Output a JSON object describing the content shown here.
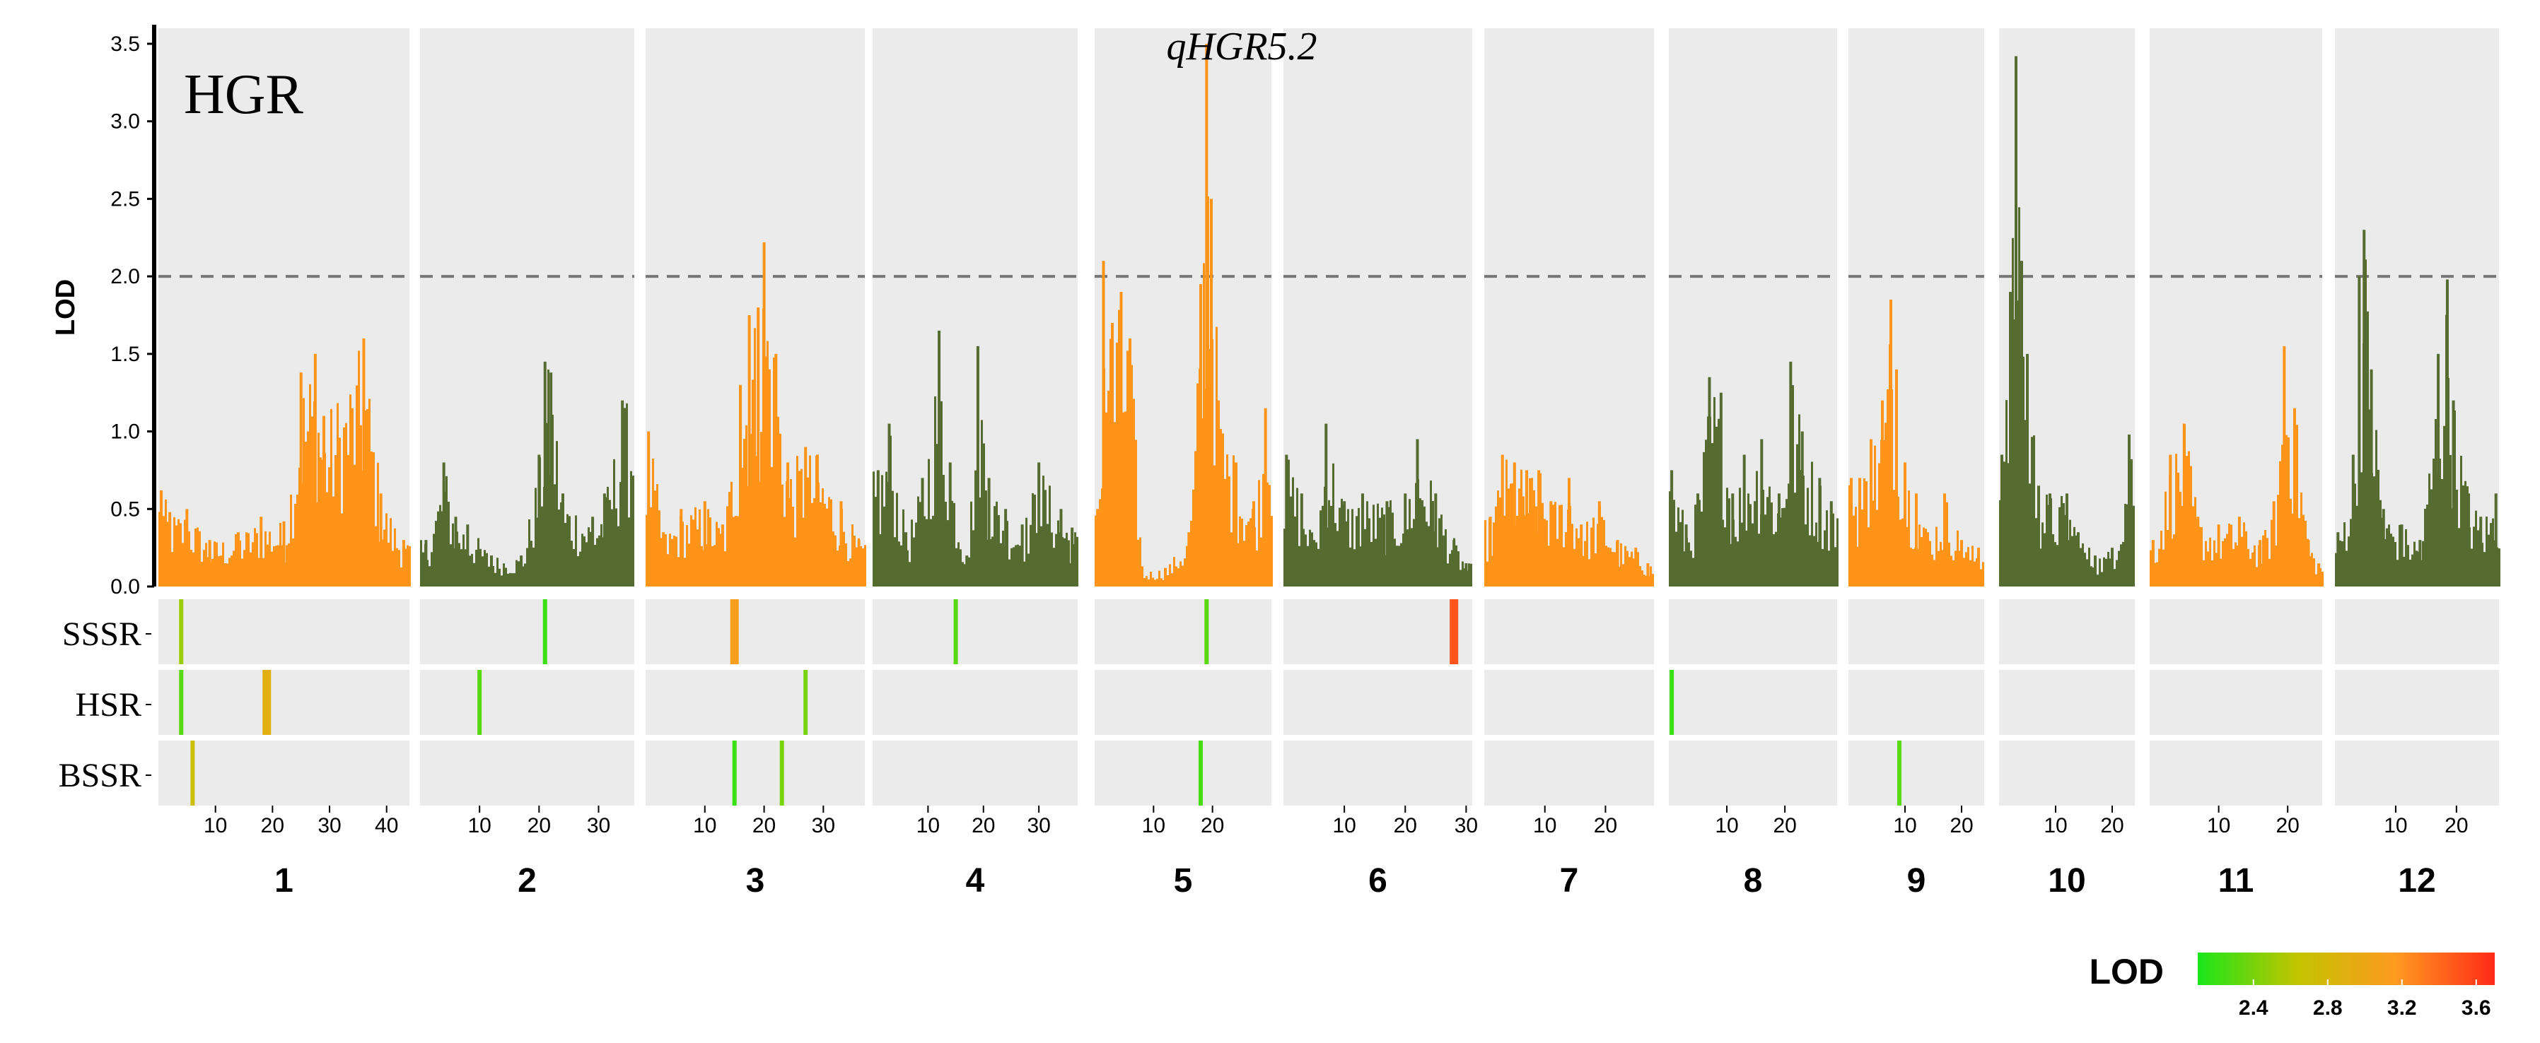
{
  "chart_data": {
    "type": "bar",
    "trait_label": "HGR",
    "qtl_label": "qHGR5.2",
    "ylabel": "LOD",
    "ylim": [
      0,
      3.6
    ],
    "yticks": [
      "0.0",
      "0.5",
      "1.0",
      "1.5",
      "2.0",
      "2.5",
      "3.0",
      "3.5"
    ],
    "threshold": 2.0,
    "colors": {
      "odd": "#ff9418",
      "even": "#556b2f",
      "panel_bg": "#ebebeb",
      "threshold": "#777777"
    },
    "track_rows": [
      "SSSR",
      "HSR",
      "BSSR"
    ],
    "chromosomes": [
      {
        "name": "1",
        "length": 44,
        "ticks": [
          10,
          20,
          30,
          40
        ],
        "tick_labels": [
          "10",
          "20",
          "30",
          "40"
        ],
        "peaks": [
          [
            0.5,
            0.62
          ],
          [
            2,
            0.48
          ],
          [
            5,
            0.5
          ],
          [
            9,
            0.3
          ],
          [
            14,
            0.35
          ],
          [
            18,
            0.45
          ],
          [
            22,
            0.42
          ],
          [
            25,
            1.38
          ],
          [
            27.5,
            1.5
          ],
          [
            29,
            1.1
          ],
          [
            36,
            1.6
          ],
          [
            39,
            0.6
          ],
          [
            43,
            0.3
          ]
        ],
        "tracks": [
          [
            {
              "pos": 4,
              "lod": 2.5
            }
          ],
          [
            {
              "pos": 4,
              "lod": 2.3
            },
            {
              "pos": 19,
              "lod": 2.9
            }
          ],
          [
            {
              "pos": 6,
              "lod": 2.7
            }
          ]
        ]
      },
      {
        "name": "2",
        "length": 36,
        "ticks": [
          10,
          20,
          30
        ],
        "tick_labels": [
          "10",
          "20",
          "30"
        ],
        "peaks": [
          [
            1,
            0.3
          ],
          [
            4,
            0.8
          ],
          [
            6,
            0.45
          ],
          [
            8,
            0.4
          ],
          [
            12,
            0.2
          ],
          [
            17,
            0.2
          ],
          [
            20,
            0.85
          ],
          [
            21,
            1.45
          ],
          [
            22,
            1.38
          ],
          [
            24,
            0.6
          ],
          [
            29,
            0.45
          ],
          [
            31,
            0.6
          ],
          [
            34,
            1.2
          ]
        ],
        "tracks": [
          [
            {
              "pos": 21,
              "lod": 2.2
            }
          ],
          [
            {
              "pos": 10,
              "lod": 2.3
            }
          ],
          []
        ]
      },
      {
        "name": "3",
        "length": 37,
        "ticks": [
          10,
          20,
          30
        ],
        "tick_labels": [
          "10",
          "20",
          "30"
        ],
        "peaks": [
          [
            0.5,
            1.0
          ],
          [
            3,
            0.35
          ],
          [
            6,
            0.5
          ],
          [
            10,
            0.55
          ],
          [
            13,
            0.4
          ],
          [
            16,
            1.3
          ],
          [
            17.5,
            1.75
          ],
          [
            19,
            1.8
          ],
          [
            20,
            2.22
          ],
          [
            22,
            1.5
          ],
          [
            24,
            0.8
          ],
          [
            27,
            0.9
          ],
          [
            29,
            0.85
          ],
          [
            33,
            0.55
          ],
          [
            36,
            0.3
          ]
        ],
        "tracks": [
          [
            {
              "pos": 15,
              "lod": 3.1
            }
          ],
          [
            {
              "pos": 27,
              "lod": 2.4
            }
          ],
          [
            {
              "pos": 15,
              "lod": 2.2
            },
            {
              "pos": 23,
              "lod": 2.4
            }
          ]
        ]
      },
      {
        "name": "4",
        "length": 37,
        "ticks": [
          10,
          20,
          30
        ],
        "tick_labels": [
          "10",
          "20",
          "30"
        ],
        "peaks": [
          [
            1,
            0.75
          ],
          [
            3,
            1.05
          ],
          [
            6,
            0.35
          ],
          [
            9,
            0.7
          ],
          [
            12,
            1.65
          ],
          [
            14,
            0.8
          ],
          [
            17,
            0.2
          ],
          [
            19,
            1.55
          ],
          [
            21,
            0.7
          ],
          [
            24,
            0.5
          ],
          [
            27,
            0.4
          ],
          [
            30,
            0.8
          ],
          [
            34,
            0.5
          ],
          [
            36,
            0.38
          ]
        ],
        "tracks": [
          [
            {
              "pos": 15,
              "lod": 2.3
            }
          ],
          [],
          []
        ]
      },
      {
        "name": "5",
        "length": 30,
        "ticks": [
          10,
          20
        ],
        "tick_labels": [
          "10",
          "20"
        ],
        "peaks": [
          [
            0.5,
            0.5
          ],
          [
            1.5,
            2.1
          ],
          [
            3,
            1.7
          ],
          [
            4.5,
            1.9
          ],
          [
            6,
            1.6
          ],
          [
            8,
            0.1
          ],
          [
            12,
            0.12
          ],
          [
            16,
            0.35
          ],
          [
            18,
            1.95
          ],
          [
            19,
            3.5
          ],
          [
            19.8,
            2.5
          ],
          [
            21,
            1.2
          ],
          [
            24,
            0.8
          ],
          [
            27,
            0.55
          ],
          [
            29,
            1.15
          ]
        ],
        "tracks": [
          [
            {
              "pos": 19,
              "lod": 2.3
            }
          ],
          [],
          [
            {
              "pos": 18,
              "lod": 2.25
            }
          ]
        ]
      },
      {
        "name": "6",
        "length": 31,
        "ticks": [
          10,
          20,
          30
        ],
        "tick_labels": [
          "10",
          "20",
          "30"
        ],
        "peaks": [
          [
            0.5,
            0.85
          ],
          [
            3,
            0.6
          ],
          [
            5,
            0.3
          ],
          [
            7,
            1.05
          ],
          [
            10,
            0.55
          ],
          [
            13,
            0.6
          ],
          [
            17,
            0.55
          ],
          [
            20,
            0.6
          ],
          [
            22,
            0.95
          ],
          [
            25,
            0.6
          ],
          [
            28,
            0.3
          ],
          [
            30,
            0.15
          ]
        ],
        "tracks": [
          [
            {
              "pos": 28,
              "lod": 3.5
            }
          ],
          [],
          []
        ]
      },
      {
        "name": "7",
        "length": 28,
        "ticks": [
          10,
          20
        ],
        "tick_labels": [
          "10",
          "20"
        ],
        "peaks": [
          [
            1,
            0.45
          ],
          [
            3,
            0.85
          ],
          [
            5,
            0.8
          ],
          [
            7,
            0.75
          ],
          [
            9,
            0.75
          ],
          [
            11,
            0.55
          ],
          [
            14,
            0.7
          ],
          [
            16,
            0.4
          ],
          [
            19,
            0.55
          ],
          [
            22,
            0.3
          ],
          [
            25,
            0.25
          ],
          [
            27,
            0.15
          ]
        ],
        "tracks": [
          [],
          [],
          []
        ]
      },
      {
        "name": "8",
        "length": 29,
        "ticks": [
          10,
          20
        ],
        "tick_labels": [
          "10",
          "20"
        ],
        "peaks": [
          [
            0.5,
            0.75
          ],
          [
            3,
            0.4
          ],
          [
            5,
            0.6
          ],
          [
            7,
            1.35
          ],
          [
            9,
            1.25
          ],
          [
            11,
            0.6
          ],
          [
            13,
            0.85
          ],
          [
            16,
            0.95
          ],
          [
            19,
            0.6
          ],
          [
            21,
            1.45
          ],
          [
            23,
            1.0
          ],
          [
            26,
            0.7
          ],
          [
            28,
            0.55
          ]
        ],
        "tracks": [
          [],
          [
            {
              "pos": 0.5,
              "lod": 2.2
            }
          ],
          []
        ]
      },
      {
        "name": "9",
        "length": 24,
        "ticks": [
          10,
          20
        ],
        "tick_labels": [
          "10",
          "20"
        ],
        "peaks": [
          [
            0.5,
            0.7
          ],
          [
            2,
            0.7
          ],
          [
            4,
            0.95
          ],
          [
            6,
            1.2
          ],
          [
            7.5,
            1.85
          ],
          [
            8.5,
            1.4
          ],
          [
            10,
            0.8
          ],
          [
            12,
            0.6
          ],
          [
            14,
            0.35
          ],
          [
            17,
            0.6
          ],
          [
            20,
            0.3
          ],
          [
            23,
            0.25
          ]
        ],
        "tracks": [
          [],
          [],
          [
            {
              "pos": 9,
              "lod": 2.3
            }
          ]
        ]
      },
      {
        "name": "10",
        "length": 24,
        "ticks": [
          10,
          20
        ],
        "tick_labels": [
          "10",
          "20"
        ],
        "peaks": [
          [
            0.5,
            0.85
          ],
          [
            2,
            1.9
          ],
          [
            3,
            3.42
          ],
          [
            4,
            2.1
          ],
          [
            5,
            1.5
          ],
          [
            7,
            0.65
          ],
          [
            9,
            0.6
          ],
          [
            12,
            0.6
          ],
          [
            14,
            0.35
          ],
          [
            17,
            0.2
          ],
          [
            20,
            0.25
          ],
          [
            23,
            0.98
          ]
        ],
        "tracks": [
          [],
          [],
          []
        ]
      },
      {
        "name": "11",
        "length": 25,
        "ticks": [
          10,
          20
        ],
        "tick_labels": [
          "10",
          "20"
        ],
        "peaks": [
          [
            0.5,
            0.3
          ],
          [
            3,
            0.85
          ],
          [
            5,
            1.05
          ],
          [
            7,
            0.45
          ],
          [
            10,
            0.4
          ],
          [
            13,
            0.45
          ],
          [
            16,
            0.3
          ],
          [
            18,
            0.55
          ],
          [
            19.5,
            1.55
          ],
          [
            21,
            1.15
          ],
          [
            23,
            0.3
          ],
          [
            24.5,
            0.15
          ]
        ],
        "tracks": [
          [],
          [],
          []
        ]
      },
      {
        "name": "12",
        "length": 27,
        "ticks": [
          10,
          20
        ],
        "tick_labels": [
          "10",
          "20"
        ],
        "peaks": [
          [
            0.5,
            0.35
          ],
          [
            3,
            0.85
          ],
          [
            4,
            2.0
          ],
          [
            4.8,
            2.3
          ],
          [
            6,
            1.4
          ],
          [
            8,
            0.5
          ],
          [
            11,
            0.4
          ],
          [
            14,
            0.3
          ],
          [
            17,
            1.5
          ],
          [
            18.5,
            1.98
          ],
          [
            19.5,
            1.2
          ],
          [
            22,
            0.6
          ],
          [
            24,
            0.45
          ],
          [
            26.5,
            0.6
          ]
        ],
        "tracks": [
          [],
          [],
          []
        ]
      }
    ],
    "legend": {
      "title": "LOD",
      "min": 2.1,
      "max": 3.7,
      "tick_values": [
        2.4,
        2.8,
        3.2,
        3.6
      ],
      "tick_labels": [
        "2.4",
        "2.8",
        "3.2",
        "3.6"
      ],
      "color_stops": [
        "#19e619",
        "#c2c400",
        "#ff9a20",
        "#ff2a18"
      ]
    }
  }
}
